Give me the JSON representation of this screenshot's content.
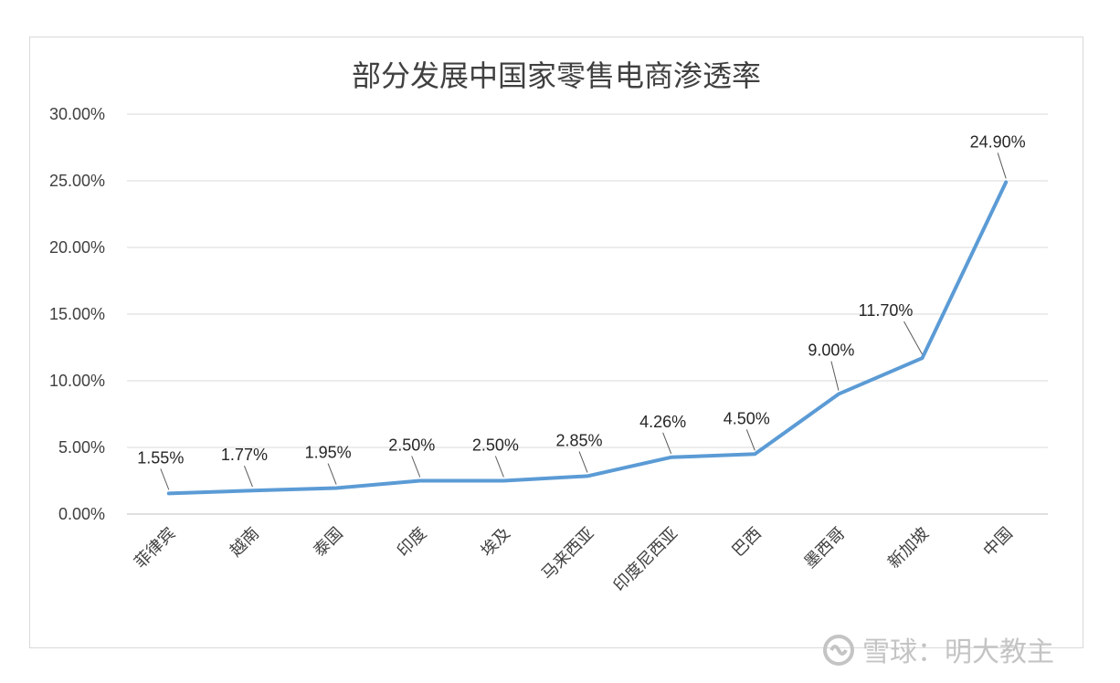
{
  "chart_data": {
    "type": "line",
    "title": "部分发展中国家零售电商渗透率",
    "xlabel": "",
    "ylabel": "",
    "categories": [
      "菲律宾",
      "越南",
      "泰国",
      "印度",
      "埃及",
      "马来西亚",
      "印度尼西亚",
      "巴西",
      "墨西哥",
      "新加坡",
      "中国"
    ],
    "values": [
      1.55,
      1.77,
      1.95,
      2.5,
      2.5,
      2.85,
      4.26,
      4.5,
      9.0,
      11.7,
      24.9
    ],
    "data_labels": [
      "1.55%",
      "1.77%",
      "1.95%",
      "2.50%",
      "2.50%",
      "2.85%",
      "4.26%",
      "4.50%",
      "9.00%",
      "11.70%",
      "24.90%"
    ],
    "y_ticks": [
      "0.00%",
      "5.00%",
      "10.00%",
      "15.00%",
      "20.00%",
      "25.00%",
      "30.00%"
    ],
    "ylim": [
      0,
      30
    ],
    "grid": true,
    "legend": "none",
    "line_color": "#5b9bd5"
  },
  "watermark": {
    "text": "雪球：明大教主",
    "icon": "snowball-logo-icon"
  }
}
